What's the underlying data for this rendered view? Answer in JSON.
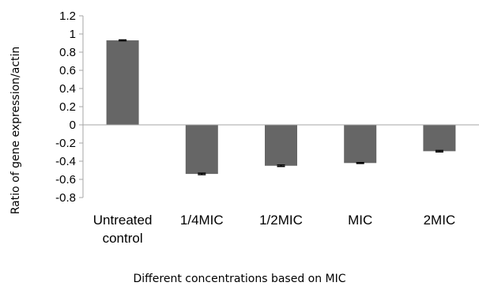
{
  "chart_data": {
    "type": "bar",
    "title": "",
    "xlabel": "Different concentrations based on MIC",
    "ylabel": "Ratio of gene expression/actin",
    "categories": [
      [
        "Untreated",
        "control"
      ],
      [
        "1/4MIC"
      ],
      [
        "1/2MIC"
      ],
      [
        "MIC"
      ],
      [
        "2MIC"
      ]
    ],
    "values": [
      0.93,
      -0.54,
      -0.45,
      -0.42,
      -0.29
    ],
    "errors": [
      0.005,
      0.008,
      0.008,
      0.005,
      0.008
    ],
    "ylim": [
      -0.8,
      1.2
    ],
    "yticks": [
      "1.2",
      "1",
      "0.8",
      "0.6",
      "0.4",
      "0.2",
      "0",
      "-0.2",
      "-0.4",
      "-0.6",
      "-0.8"
    ],
    "grid": false,
    "legend": "none",
    "colors": {
      "bar": "#666666",
      "axis": "#a6a6a6",
      "errorbar": "#000000"
    }
  }
}
